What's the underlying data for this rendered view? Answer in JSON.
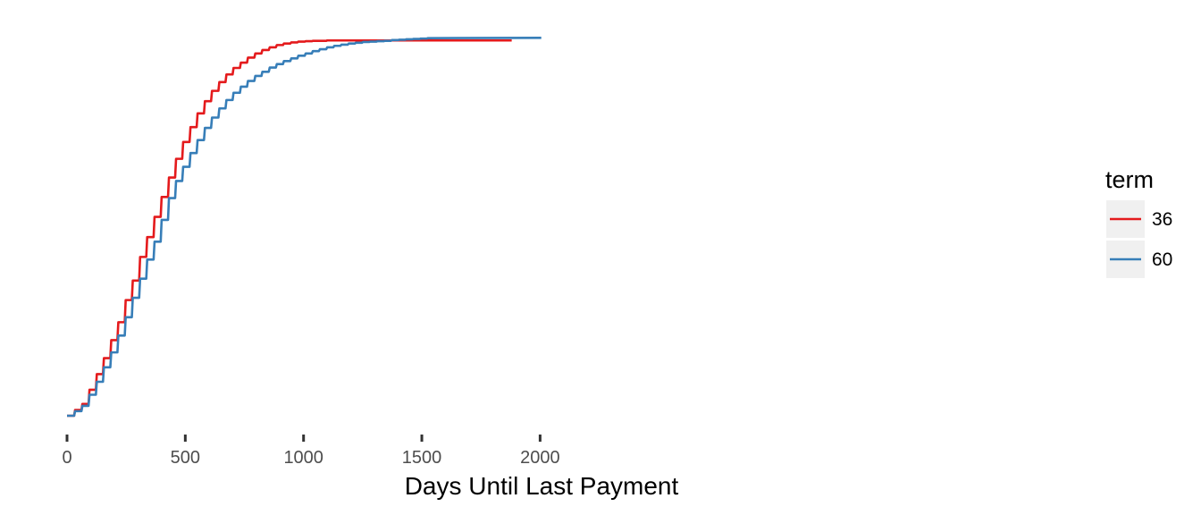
{
  "chart_data": {
    "type": "line",
    "xlabel": "Days Until Last Payment",
    "ylabel": "",
    "xlim": [
      -20,
      2100
    ],
    "ylim": [
      0,
      1
    ],
    "x_ticks": [
      0,
      500,
      1000,
      1500,
      2000
    ],
    "x_tick_labels": [
      "0",
      "500",
      "1000",
      "1500",
      "2000"
    ],
    "legend": {
      "title": "term",
      "position": "right"
    },
    "series": [
      {
        "name": "36",
        "color": "#E41A1C",
        "x_end": 1880,
        "y_end": 0.983,
        "steps": {
          "x": [
            0,
            30,
            61,
            91,
            122,
            152,
            183,
            213,
            244,
            274,
            305,
            335,
            366,
            396,
            427,
            457,
            487,
            518,
            548,
            579,
            609,
            640,
            670,
            700,
            731,
            761,
            792,
            822,
            853,
            883,
            913,
            944,
            974,
            1005,
            1035,
            1065,
            1096,
            1126,
            1156,
            1187,
            1217,
            1247
          ],
          "y": [
            0.0,
            0.015,
            0.031,
            0.068,
            0.109,
            0.151,
            0.198,
            0.245,
            0.303,
            0.354,
            0.416,
            0.468,
            0.521,
            0.573,
            0.624,
            0.673,
            0.717,
            0.756,
            0.792,
            0.824,
            0.851,
            0.874,
            0.894,
            0.911,
            0.925,
            0.938,
            0.949,
            0.958,
            0.965,
            0.971,
            0.975,
            0.978,
            0.98,
            0.981,
            0.982,
            0.982,
            0.983,
            0.983,
            0.983,
            0.983,
            0.983,
            0.983
          ]
        }
      },
      {
        "name": "60",
        "color": "#377EB8",
        "x_end": 2005,
        "y_end": 0.99,
        "steps": {
          "x": [
            0,
            30,
            61,
            91,
            122,
            152,
            183,
            213,
            244,
            274,
            305,
            335,
            366,
            396,
            427,
            457,
            487,
            518,
            548,
            579,
            609,
            640,
            670,
            700,
            731,
            761,
            792,
            822,
            853,
            883,
            913,
            944,
            974,
            1005,
            1035,
            1065,
            1096,
            1126,
            1156,
            1187,
            1217,
            1247,
            1278,
            1308,
            1339,
            1369,
            1400,
            1430,
            1460,
            1491,
            1521
          ],
          "y": [
            0.0,
            0.012,
            0.026,
            0.055,
            0.089,
            0.127,
            0.166,
            0.21,
            0.258,
            0.309,
            0.359,
            0.409,
            0.456,
            0.513,
            0.57,
            0.615,
            0.652,
            0.688,
            0.722,
            0.754,
            0.781,
            0.805,
            0.827,
            0.846,
            0.862,
            0.877,
            0.89,
            0.901,
            0.912,
            0.921,
            0.929,
            0.936,
            0.943,
            0.949,
            0.955,
            0.96,
            0.965,
            0.969,
            0.972,
            0.975,
            0.977,
            0.979,
            0.98,
            0.981,
            0.982,
            0.984,
            0.985,
            0.986,
            0.987,
            0.988,
            0.989
          ]
        }
      }
    ]
  }
}
